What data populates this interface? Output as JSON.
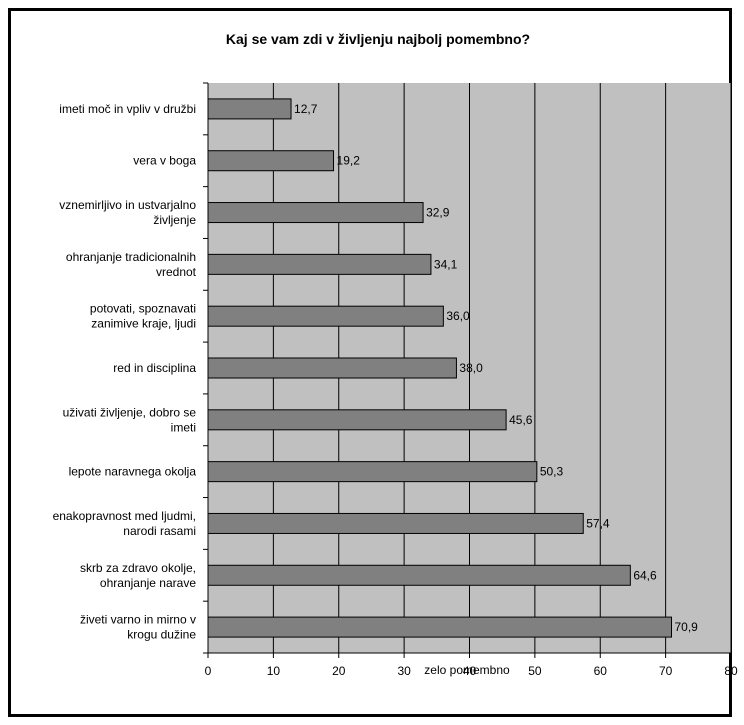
{
  "chart_data": {
    "type": "bar",
    "orientation": "horizontal",
    "title": "Kaj se vam zdi v življenju najbolj pomembno?",
    "xlabel": "zelo pomembno",
    "xlim": [
      0,
      80
    ],
    "xticks": [
      0,
      10,
      20,
      30,
      40,
      50,
      60,
      70,
      80
    ],
    "grid": true,
    "categories": [
      [
        "imeti moč in vpliv v družbi"
      ],
      [
        "vera v boga"
      ],
      [
        "vznemirljivo in ustvarjalno",
        "življenje"
      ],
      [
        "ohranjanje tradicionalnih",
        "vrednot"
      ],
      [
        "potovati, spoznavati",
        "zanimive kraje, ljudi"
      ],
      [
        "red in disciplina"
      ],
      [
        "uživati življenje, dobro se",
        "imeti"
      ],
      [
        "lepote naravnega okolja"
      ],
      [
        "enakopravnost med ljudmi,",
        "narodi rasami"
      ],
      [
        "skrb za zdravo okolje,",
        "ohranjanje narave"
      ],
      [
        "živeti varno in mirno v",
        "krogu dužine"
      ]
    ],
    "values": [
      12.7,
      19.2,
      32.9,
      34.1,
      36.0,
      38.0,
      45.6,
      50.3,
      57.4,
      64.6,
      70.9
    ],
    "value_labels": [
      "12,7",
      "19,2",
      "32,9",
      "34,1",
      "36,0",
      "38,0",
      "45,6",
      "50,3",
      "57,4",
      "64,6",
      "70,9"
    ],
    "colors": {
      "plot_bg": "#c0c0c0",
      "bar_fill": "#808080",
      "bar_stroke": "#000000",
      "grid": "#000000"
    }
  }
}
